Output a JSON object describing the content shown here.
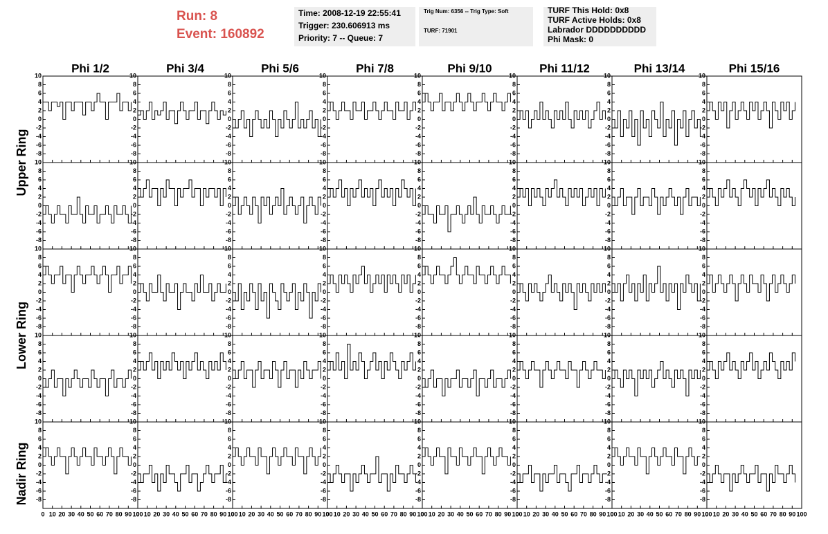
{
  "header": {
    "run": "Run:    8",
    "event": "Event: 160892",
    "box1": [
      "Time: 2008-12-19 22:55:41",
      "Trigger: 230.606913 ms",
      "Priority: 7 -- Queue: 7"
    ],
    "box2": [
      "Trig Num: 6356 -- Trig Type: Soft",
      "TURF: 71901"
    ],
    "box3": [
      "TURF This Hold: 0x8",
      "TURF Active Holds: 0x8",
      "Labrador DDDDDDDDDD",
      "Phi Mask: 0"
    ]
  },
  "chart_data": {
    "type": "line",
    "columns": [
      "Phi 1/2",
      "Phi 3/4",
      "Phi 5/6",
      "Phi 7/8",
      "Phi 9/10",
      "Phi 11/12",
      "Phi 13/14",
      "Phi 15/16"
    ],
    "ring_labels": [
      "Upper Ring",
      "Lower Ring",
      "Nadir Ring"
    ],
    "xlim": [
      0,
      100
    ],
    "ylim": [
      -10,
      10
    ],
    "xticks": [
      0,
      10,
      20,
      30,
      40,
      50,
      60,
      70,
      80,
      90,
      100
    ],
    "yticks": [
      10,
      8,
      6,
      4,
      2,
      0,
      -2,
      -4,
      -6,
      -8
    ],
    "color": "#000000",
    "x": [
      0,
      3,
      6,
      9,
      12,
      15,
      18,
      21,
      24,
      27,
      30,
      33,
      36,
      39,
      42,
      45,
      48,
      51,
      54,
      57,
      60,
      63,
      66,
      69,
      72,
      75,
      78,
      81,
      84,
      87,
      90,
      93
    ],
    "panels": [
      [
        [
          4,
          4,
          2,
          4,
          4,
          3,
          4,
          0,
          4,
          4,
          2,
          4,
          4,
          4,
          1,
          4,
          4,
          2,
          4,
          6,
          4,
          4,
          0,
          4,
          4,
          4,
          6,
          2,
          4,
          4,
          2,
          4
        ],
        [
          1,
          2,
          0,
          2,
          4,
          0,
          2,
          1,
          2,
          4,
          0,
          2,
          2,
          -1,
          2,
          4,
          2,
          0,
          2,
          2,
          4,
          0,
          2,
          2,
          -1,
          2,
          4,
          2,
          0,
          2,
          1,
          2
        ],
        [
          0,
          -2,
          0,
          2,
          -2,
          0,
          -4,
          0,
          2,
          0,
          -2,
          0,
          -2,
          2,
          0,
          -4,
          0,
          -2,
          2,
          0,
          -2,
          0,
          4,
          -2,
          0,
          -2,
          0,
          2,
          -2,
          0,
          -4,
          0
        ],
        [
          2,
          4,
          2,
          0,
          2,
          4,
          2,
          2,
          0,
          4,
          2,
          2,
          4,
          0,
          2,
          2,
          4,
          2,
          0,
          2,
          4,
          2,
          2,
          0,
          4,
          2,
          2,
          4,
          0,
          2,
          4,
          2
        ],
        [
          4,
          6,
          4,
          2,
          4,
          4,
          6,
          2,
          4,
          4,
          2,
          4,
          6,
          4,
          2,
          4,
          6,
          4,
          2,
          4,
          4,
          6,
          4,
          2,
          4,
          6,
          4,
          4,
          2,
          4,
          6,
          4
        ],
        [
          0,
          2,
          0,
          2,
          -2,
          0,
          2,
          0,
          4,
          0,
          2,
          0,
          -2,
          2,
          0,
          2,
          0,
          4,
          0,
          -2,
          2,
          0,
          2,
          0,
          2,
          -2,
          0,
          2,
          4,
          0,
          2,
          0
        ],
        [
          0,
          -2,
          2,
          -4,
          0,
          -2,
          2,
          -4,
          0,
          -6,
          2,
          -2,
          0,
          -4,
          2,
          0,
          -2,
          4,
          -4,
          0,
          -2,
          2,
          -6,
          0,
          -2,
          2,
          -4,
          0,
          2,
          -2,
          0,
          -4
        ],
        [
          2,
          4,
          2,
          0,
          4,
          2,
          4,
          -2,
          2,
          4,
          0,
          2,
          4,
          2,
          0,
          4,
          2,
          4,
          0,
          2,
          4,
          2,
          -2,
          4,
          2,
          0,
          4,
          2,
          4,
          0,
          2,
          4
        ]
      ],
      [
        [
          -2,
          0,
          -2,
          -4,
          -2,
          0,
          -2,
          -2,
          -4,
          0,
          -2,
          -2,
          2,
          -2,
          -4,
          0,
          -2,
          -2,
          0,
          -4,
          -2,
          -2,
          0,
          -2,
          -4,
          0,
          -2,
          -2,
          0,
          -2,
          -4,
          0
        ],
        [
          4,
          2,
          4,
          6,
          2,
          4,
          4,
          0,
          4,
          2,
          6,
          4,
          4,
          0,
          4,
          2,
          4,
          4,
          6,
          2,
          4,
          4,
          0,
          4,
          2,
          4,
          4,
          2,
          4,
          0,
          4,
          2
        ],
        [
          0,
          2,
          -2,
          0,
          2,
          0,
          -2,
          2,
          0,
          -4,
          2,
          0,
          2,
          -2,
          0,
          2,
          0,
          4,
          -2,
          0,
          2,
          0,
          -2,
          0,
          2,
          -4,
          0,
          2,
          0,
          -2,
          2,
          0
        ],
        [
          2,
          4,
          2,
          4,
          6,
          2,
          4,
          0,
          4,
          2,
          4,
          6,
          2,
          4,
          2,
          4,
          0,
          4,
          6,
          2,
          4,
          2,
          4,
          0,
          4,
          2,
          6,
          4,
          2,
          4,
          0,
          4
        ],
        [
          -2,
          0,
          -2,
          -2,
          -4,
          0,
          -2,
          -2,
          0,
          -6,
          -2,
          -2,
          0,
          -2,
          -4,
          -2,
          0,
          -2,
          2,
          -2,
          -4,
          0,
          -2,
          -2,
          0,
          -2,
          -4,
          -2,
          0,
          -2,
          -2,
          0
        ],
        [
          2,
          4,
          2,
          4,
          0,
          4,
          2,
          4,
          2,
          0,
          4,
          2,
          4,
          6,
          2,
          4,
          2,
          0,
          4,
          2,
          4,
          2,
          4,
          0,
          2,
          4,
          2,
          4,
          0,
          4,
          2,
          4
        ],
        [
          2,
          0,
          2,
          4,
          0,
          2,
          2,
          -2,
          2,
          4,
          0,
          2,
          2,
          0,
          4,
          2,
          -2,
          2,
          0,
          2,
          4,
          2,
          0,
          2,
          -2,
          2,
          4,
          0,
          2,
          2,
          0,
          2
        ],
        [
          2,
          4,
          2,
          0,
          4,
          2,
          4,
          6,
          2,
          4,
          2,
          0,
          4,
          6,
          4,
          2,
          4,
          0,
          4,
          2,
          4,
          6,
          2,
          4,
          2,
          0,
          4,
          2,
          4,
          2,
          0,
          2
        ]
      ],
      [
        [
          4,
          6,
          4,
          2,
          4,
          4,
          6,
          2,
          4,
          4,
          0,
          4,
          6,
          4,
          2,
          4,
          4,
          6,
          4,
          2,
          4,
          6,
          4,
          0,
          4,
          4,
          6,
          2,
          4,
          4,
          6,
          2
        ],
        [
          0,
          2,
          0,
          -2,
          2,
          0,
          0,
          4,
          0,
          -2,
          2,
          0,
          0,
          2,
          -4,
          0,
          2,
          0,
          0,
          -2,
          2,
          0,
          4,
          0,
          0,
          2,
          -2,
          0,
          2,
          0,
          0,
          2
        ],
        [
          0,
          -2,
          2,
          -4,
          0,
          -2,
          2,
          0,
          -4,
          2,
          -2,
          0,
          -6,
          2,
          0,
          -2,
          -4,
          2,
          0,
          -2,
          0,
          2,
          -4,
          0,
          -2,
          2,
          0,
          -6,
          0,
          -2,
          2,
          0
        ],
        [
          2,
          4,
          2,
          0,
          4,
          2,
          4,
          2,
          0,
          4,
          2,
          4,
          6,
          2,
          4,
          0,
          2,
          4,
          2,
          4,
          0,
          4,
          2,
          4,
          2,
          0,
          4,
          2,
          4,
          0,
          2,
          4
        ],
        [
          4,
          6,
          4,
          2,
          4,
          6,
          4,
          4,
          2,
          4,
          6,
          8,
          4,
          2,
          4,
          6,
          4,
          4,
          2,
          6,
          4,
          4,
          2,
          4,
          6,
          4,
          2,
          4,
          6,
          4,
          4,
          2
        ],
        [
          0,
          2,
          0,
          -2,
          2,
          0,
          2,
          0,
          -2,
          0,
          2,
          4,
          0,
          2,
          0,
          -2,
          2,
          0,
          2,
          0,
          -4,
          2,
          0,
          2,
          0,
          -2,
          2,
          0,
          2,
          0,
          2,
          0
        ],
        [
          2,
          0,
          2,
          -2,
          2,
          4,
          0,
          2,
          -2,
          2,
          0,
          4,
          -2,
          2,
          0,
          2,
          6,
          0,
          2,
          -2,
          2,
          0,
          2,
          -4,
          2,
          0,
          4,
          2,
          0,
          2,
          -2,
          2
        ],
        [
          2,
          4,
          0,
          2,
          4,
          2,
          0,
          2,
          4,
          2,
          -2,
          2,
          4,
          2,
          0,
          4,
          2,
          2,
          0,
          4,
          2,
          -2,
          2,
          4,
          0,
          2,
          4,
          2,
          0,
          2,
          4,
          2
        ]
      ],
      [
        [
          0,
          -2,
          0,
          2,
          -2,
          0,
          0,
          -4,
          0,
          -2,
          0,
          2,
          0,
          -2,
          0,
          0,
          -2,
          2,
          0,
          -2,
          0,
          0,
          -4,
          0,
          2,
          -2,
          0,
          0,
          -2,
          0,
          2,
          0
        ],
        [
          2,
          4,
          2,
          4,
          6,
          2,
          4,
          0,
          4,
          2,
          4,
          2,
          6,
          4,
          2,
          4,
          0,
          4,
          2,
          4,
          6,
          2,
          4,
          2,
          0,
          4,
          2,
          4,
          2,
          6,
          4,
          2
        ],
        [
          2,
          0,
          2,
          4,
          0,
          2,
          2,
          -2,
          2,
          4,
          0,
          2,
          2,
          0,
          4,
          2,
          -2,
          2,
          4,
          0,
          2,
          2,
          -2,
          2,
          0,
          4,
          2,
          0,
          2,
          2,
          4,
          0
        ],
        [
          2,
          4,
          2,
          6,
          2,
          4,
          0,
          8,
          2,
          4,
          2,
          6,
          4,
          0,
          2,
          4,
          6,
          2,
          4,
          0,
          4,
          2,
          6,
          4,
          2,
          0,
          4,
          2,
          4,
          6,
          2,
          4
        ],
        [
          0,
          -2,
          0,
          2,
          -2,
          0,
          0,
          -4,
          0,
          -2,
          0,
          0,
          2,
          -2,
          0,
          0,
          -2,
          0,
          2,
          -4,
          0,
          0,
          -2,
          0,
          2,
          -2,
          0,
          0,
          -2,
          0,
          2,
          0
        ],
        [
          2,
          4,
          2,
          0,
          2,
          4,
          2,
          2,
          -2,
          2,
          4,
          2,
          0,
          2,
          4,
          2,
          2,
          0,
          4,
          2,
          2,
          -2,
          2,
          4,
          2,
          0,
          2,
          4,
          2,
          2,
          0,
          2
        ],
        [
          0,
          2,
          0,
          -2,
          2,
          0,
          2,
          0,
          -4,
          2,
          0,
          2,
          0,
          2,
          -2,
          0,
          2,
          4,
          0,
          2,
          0,
          -2,
          2,
          0,
          2,
          0,
          -4,
          2,
          0,
          2,
          0,
          2
        ],
        [
          2,
          4,
          2,
          0,
          4,
          2,
          4,
          6,
          2,
          4,
          2,
          0,
          4,
          2,
          4,
          6,
          2,
          4,
          0,
          2,
          4,
          2,
          6,
          4,
          2,
          0,
          4,
          2,
          4,
          2,
          6,
          4
        ]
      ],
      [
        [
          2,
          4,
          2,
          0,
          2,
          4,
          2,
          2,
          -2,
          2,
          4,
          2,
          0,
          2,
          4,
          2,
          2,
          0,
          4,
          2,
          2,
          0,
          2,
          4,
          2,
          -2,
          2,
          4,
          2,
          2,
          0,
          2
        ],
        [
          -2,
          -4,
          -2,
          -2,
          0,
          -4,
          -2,
          -6,
          -2,
          -4,
          0,
          -2,
          -2,
          -4,
          -6,
          -2,
          -2,
          0,
          -4,
          -2,
          -2,
          -6,
          -4,
          -2,
          0,
          -2,
          -4,
          -2,
          -2,
          0,
          -4,
          -2
        ],
        [
          2,
          4,
          2,
          0,
          2,
          4,
          2,
          2,
          0,
          4,
          2,
          2,
          -2,
          2,
          4,
          2,
          0,
          2,
          4,
          2,
          2,
          0,
          4,
          2,
          2,
          -2,
          2,
          4,
          2,
          0,
          2,
          4
        ],
        [
          -2,
          -4,
          -2,
          0,
          -2,
          -4,
          -2,
          -2,
          -6,
          -2,
          -4,
          -2,
          0,
          -2,
          -4,
          -2,
          -2,
          2,
          -4,
          -2,
          -2,
          -6,
          -2,
          -4,
          0,
          -2,
          -2,
          -4,
          -2,
          0,
          -2,
          -4
        ],
        [
          2,
          4,
          2,
          0,
          2,
          4,
          2,
          2,
          -2,
          4,
          2,
          2,
          0,
          4,
          2,
          2,
          0,
          2,
          4,
          2,
          2,
          -2,
          2,
          4,
          2,
          0,
          2,
          4,
          2,
          2,
          0,
          2
        ],
        [
          -2,
          -4,
          -2,
          -2,
          0,
          -4,
          -2,
          -2,
          -6,
          -2,
          -4,
          -2,
          -2,
          0,
          -4,
          -2,
          -2,
          -4,
          -6,
          -2,
          -2,
          0,
          -4,
          -2,
          -2,
          -4,
          -2,
          0,
          -2,
          -4,
          -2,
          -2
        ],
        [
          2,
          4,
          2,
          0,
          2,
          4,
          2,
          2,
          0,
          4,
          2,
          2,
          -2,
          2,
          4,
          2,
          0,
          2,
          4,
          2,
          2,
          0,
          4,
          2,
          2,
          -2,
          2,
          4,
          2,
          0,
          2,
          2
        ],
        [
          -2,
          -4,
          -2,
          0,
          -2,
          -4,
          -2,
          -2,
          -6,
          -2,
          -4,
          -2,
          0,
          -2,
          -4,
          -2,
          -2,
          0,
          -4,
          -2,
          -2,
          -6,
          -2,
          -4,
          0,
          -2,
          -2,
          -4,
          -2,
          0,
          -2,
          -4
        ]
      ]
    ]
  }
}
